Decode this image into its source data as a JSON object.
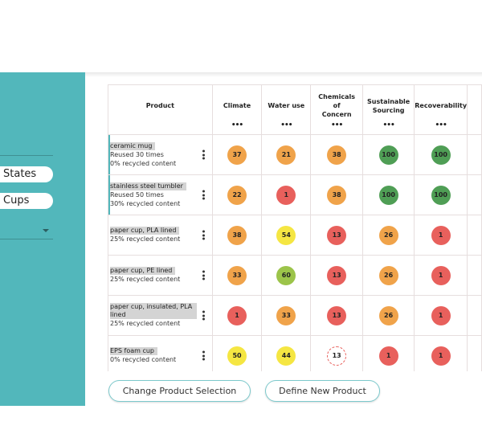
{
  "sidebar": {
    "pill1": "States",
    "pill2": "Cups"
  },
  "table": {
    "headers": [
      "Product",
      "Climate",
      "Water use",
      "Chemicals of Concern",
      "Sustainable Sourcing",
      "Recoverability"
    ],
    "header_menu": "•••",
    "rows": [
      {
        "name": "ceramic mug",
        "lines": [
          "Reused 30 times",
          "0% recycled content"
        ],
        "scores": [
          37,
          21,
          38,
          100,
          100
        ]
      },
      {
        "name": "stainless steel tumbler",
        "lines": [
          "Reused 50 times",
          "30% recycled content"
        ],
        "scores": [
          22,
          1,
          38,
          100,
          100
        ]
      },
      {
        "name": "paper cup, PLA lined",
        "lines": [
          "25% recycled content"
        ],
        "scores": [
          38,
          54,
          13,
          26,
          1
        ]
      },
      {
        "name": "paper cup, PE lined",
        "lines": [
          "25% recycled content"
        ],
        "scores": [
          33,
          60,
          13,
          26,
          1
        ]
      },
      {
        "name": "paper cup, insulated, PLA lined",
        "lines": [
          "25% recycled content"
        ],
        "scores": [
          1,
          33,
          13,
          26,
          1
        ]
      },
      {
        "name": "EPS foam cup",
        "lines": [
          "0% recycled content"
        ],
        "scores": [
          50,
          44,
          13,
          1,
          1
        ]
      }
    ],
    "colors": [
      [
        "#f0a34a",
        "#f0a34a",
        "#f0a34a",
        "#4f9e55",
        "#4f9e55"
      ],
      [
        "#f0a34a",
        "#e8605c",
        "#f0a34a",
        "#4f9e55",
        "#4f9e55"
      ],
      [
        "#f0a34a",
        "#f5e642",
        "#e8605c",
        "#f0a34a",
        "#e8605c"
      ],
      [
        "#f0a34a",
        "#9cc44a",
        "#e8605c",
        "#f0a34a",
        "#e8605c"
      ],
      [
        "#e8605c",
        "#f0a34a",
        "#e8605c",
        "#f0a34a",
        "#e8605c"
      ],
      [
        "#f5e642",
        "#f5e642",
        "dashed",
        "#e8605c",
        "#e8605c"
      ]
    ]
  },
  "buttons": {
    "change": "Change Product Selection",
    "define": "Define New Product"
  }
}
